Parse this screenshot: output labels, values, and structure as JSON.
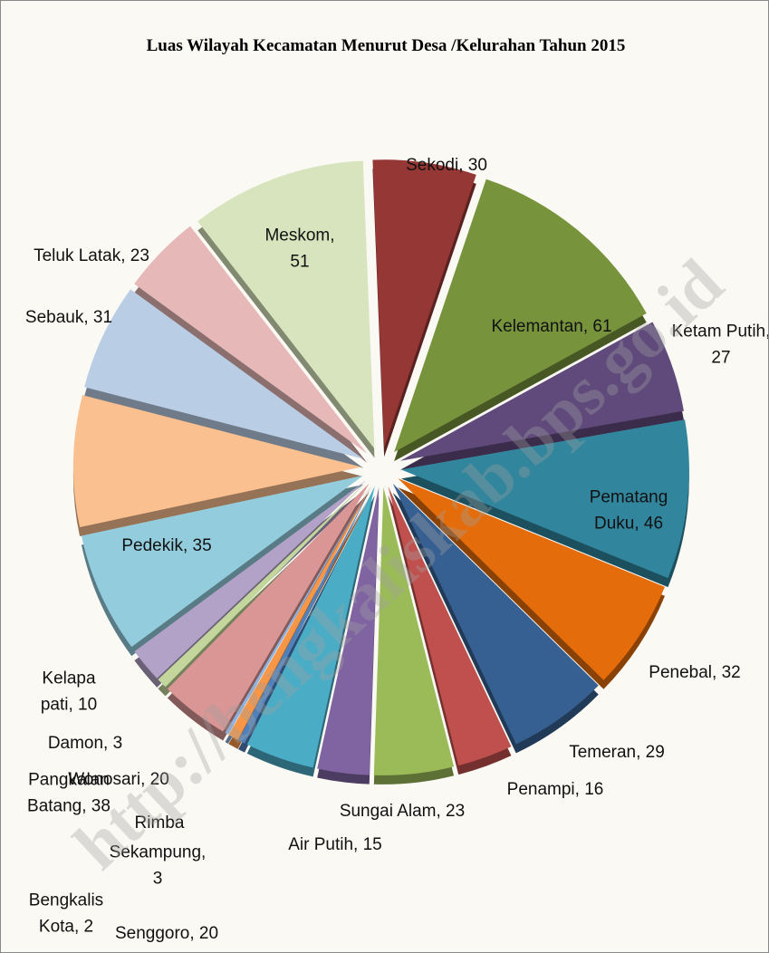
{
  "chart_data": {
    "type": "pie",
    "title": "Luas Wilayah Kecamatan Menurut Desa /Kelurahan Tahun 2015",
    "watermark": "http://bengkaliskab.bps.go.id",
    "values": [
      30,
      61,
      27,
      46,
      32,
      29,
      16,
      23,
      15,
      20,
      2,
      3,
      1,
      20,
      3,
      10,
      35,
      38,
      31,
      23,
      51
    ],
    "value_labels": [
      "Sekodi, 30",
      "Kelemantan, 61",
      "Ketam Putih, 27",
      "Pematang Duku, 46",
      "Penebal, 32",
      "Temeran, 29",
      "Penampi, 16",
      "Sungai Alam, 23",
      "Air Putih, 15",
      "Senggoro, 20",
      "Bengkalis Kota, 2",
      "Sekampung, 3",
      "Rimba",
      "Wonosari, 20",
      "Damon, 3",
      "Kelapa pati, 10",
      "Pedekik, 35",
      "Pangkalan Batang, 38",
      "Sebauk, 31",
      "Teluk Latak, 23",
      "Meskom, 51"
    ],
    "colors": [
      "#953735",
      "#77933c",
      "#604a7b",
      "#31859c",
      "#e46c0a",
      "#376092",
      "#c0504d",
      "#9bbb59",
      "#8064a2",
      "#4bacc6",
      "#4f81bd",
      "#f79646",
      "#8db3e2",
      "#d99694",
      "#c3d69b",
      "#b3a2c7",
      "#93cddd",
      "#fac090",
      "#b9cde5",
      "#e6b9b8",
      "#d7e4bd"
    ]
  }
}
